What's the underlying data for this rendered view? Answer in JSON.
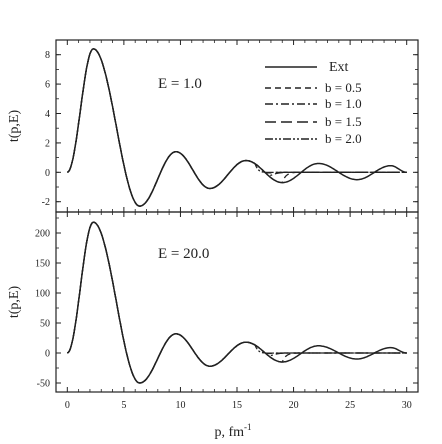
{
  "chart_data": [
    {
      "type": "line",
      "title": "",
      "annotation": "E = 1.0",
      "xlabel": "",
      "ylabel": "t(p,E)",
      "xlim": [
        -1,
        31
      ],
      "ylim": [
        -2.7,
        9.0
      ],
      "yticks": [
        -2,
        0,
        2,
        4,
        6,
        8
      ],
      "ytick_labels": [
        "-2",
        "0",
        "2",
        "4",
        "6",
        "8"
      ],
      "xticks": [
        0,
        5,
        10,
        15,
        20,
        25,
        30
      ],
      "grid": false,
      "legend_position": "top-right",
      "legend": [
        "Ext",
        "b = 0.5",
        "b = 1.0",
        "b = 1.5",
        "b = 2.0"
      ],
      "model": {
        "extrema": [
          [
            0,
            0
          ],
          [
            2.3,
            8.4
          ],
          [
            6.4,
            -2.3
          ],
          [
            9.6,
            1.4
          ],
          [
            12.6,
            -1.1
          ],
          [
            15.8,
            0.8
          ],
          [
            19.0,
            -0.7
          ],
          [
            22.2,
            0.6
          ],
          [
            25.6,
            -0.5
          ],
          [
            28.6,
            0.45
          ],
          [
            30,
            0
          ]
        ],
        "b_departure_x": [
          19.0,
          17.8,
          17.2,
          16.6
        ]
      },
      "series": [
        {
          "name": "Ext",
          "dash": "none"
        },
        {
          "name": "b = 0.5",
          "dash": "6,4"
        },
        {
          "name": "b = 1.0",
          "dash": "8,3,2,3"
        },
        {
          "name": "b = 1.5",
          "dash": "11,5"
        },
        {
          "name": "b = 2.0",
          "dash": "8,2,2,2,2,2"
        }
      ]
    },
    {
      "type": "line",
      "title": "",
      "annotation": "E = 20.0",
      "xlabel": "p, fm",
      "xlabel_superscript": "-1",
      "ylabel": "t(p,E)",
      "xlim": [
        -1,
        31
      ],
      "ylim": [
        -65,
        235
      ],
      "yticks": [
        -50,
        0,
        50,
        100,
        150,
        200
      ],
      "ytick_labels": [
        "-50",
        "0",
        "50",
        "100",
        "150",
        "200"
      ],
      "xticks": [
        0,
        5,
        10,
        15,
        20,
        25,
        30
      ],
      "xtick_labels": [
        "0",
        "5",
        "10",
        "15",
        "20",
        "25",
        "30"
      ],
      "grid": false,
      "model": {
        "extrema": [
          [
            0,
            0
          ],
          [
            2.3,
            218
          ],
          [
            6.4,
            -50
          ],
          [
            9.6,
            32
          ],
          [
            12.6,
            -22
          ],
          [
            15.8,
            18
          ],
          [
            19.0,
            -15
          ],
          [
            22.2,
            12
          ],
          [
            25.6,
            -10
          ],
          [
            28.6,
            9
          ],
          [
            30,
            0
          ]
        ],
        "b_departure_x": [
          19.0,
          17.8,
          17.2,
          16.6
        ]
      }
    }
  ]
}
